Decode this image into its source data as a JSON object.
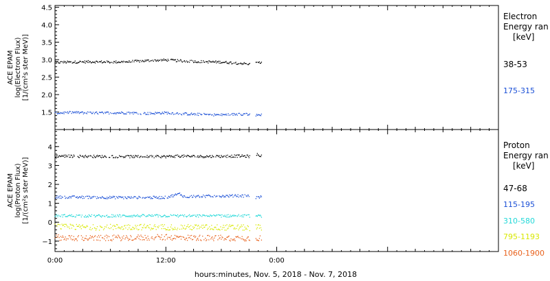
{
  "xlabel": "hours:minutes, Nov.  5, 2018 - Nov.  7, 2018",
  "colors": {
    "black": "#000000",
    "blue": "#1a4fd6",
    "cyan": "#22d8d8",
    "yellow": "#d8e800",
    "orange": "#e8601a"
  },
  "chart_data": [
    {
      "type": "scatter",
      "panel": "electron",
      "ylabel_lines": [
        "ACE EPAM",
        "log(Electron Flux)",
        "[1/(cm²s ster MeV)]"
      ],
      "legend_title": [
        "Electron",
        "Energy ran",
        "[keV]"
      ],
      "xlim": [
        0,
        48
      ],
      "ylim": [
        1.0,
        4.55
      ],
      "x_ticks": [
        {
          "x": 0,
          "label": "0:00"
        },
        {
          "x": 12,
          "label": "12:00"
        },
        {
          "x": 24,
          "label": "0:00"
        }
      ],
      "y_ticks": [
        1.5,
        2.0,
        2.5,
        3.0,
        3.5,
        4.0,
        4.5
      ],
      "y_tick_labels": [
        "1.5",
        "2.0",
        "2.5",
        "3.0",
        "3.5",
        "4.0",
        "4.5"
      ],
      "gap": [
        21.1,
        21.7
      ],
      "series": [
        {
          "name": "38-53",
          "color": "#000000",
          "x": [
            0,
            2,
            4,
            6,
            8,
            10,
            12,
            14,
            16,
            18,
            20,
            21.1,
            21.7,
            22.4
          ],
          "y": [
            2.92,
            2.93,
            2.94,
            2.93,
            2.94,
            2.97,
            2.99,
            2.96,
            2.94,
            2.93,
            2.9,
            2.87,
            2.9,
            2.92
          ]
        },
        {
          "name": "175-315",
          "color": "#1a4fd6",
          "x": [
            0,
            2,
            4,
            6,
            8,
            10,
            12,
            14,
            16,
            18,
            20,
            21.1,
            21.7,
            22.4
          ],
          "y": [
            1.47,
            1.49,
            1.47,
            1.48,
            1.48,
            1.46,
            1.48,
            1.45,
            1.43,
            1.42,
            1.44,
            1.44,
            1.4,
            1.43
          ]
        }
      ]
    },
    {
      "type": "scatter",
      "panel": "proton",
      "ylabel_lines": [
        "ACE EPAM",
        "log(Proton Flux)",
        "[1/(cm²s ster MeV)]"
      ],
      "legend_title": [
        "Proton",
        "Energy ran",
        "[keV]"
      ],
      "xlim": [
        0,
        48
      ],
      "ylim": [
        -1.55,
        4.9
      ],
      "x_ticks": [
        {
          "x": 0,
          "label": "0:00"
        },
        {
          "x": 12,
          "label": "12:00"
        },
        {
          "x": 24,
          "label": "0:00"
        }
      ],
      "y_ticks": [
        -1,
        0,
        1,
        2,
        3,
        4
      ],
      "y_tick_labels": [
        "−1",
        "0",
        "1",
        "2",
        "3",
        "4"
      ],
      "gap": [
        21.1,
        21.7
      ],
      "series": [
        {
          "name": "47-68",
          "color": "#000000",
          "x": [
            0,
            4,
            8,
            12,
            13.5,
            14.5,
            17,
            20,
            21.1,
            21.7,
            22.4
          ],
          "y": [
            3.5,
            3.48,
            3.47,
            3.47,
            3.5,
            3.48,
            3.48,
            3.5,
            3.48,
            3.6,
            3.5
          ]
        },
        {
          "name": "115-195",
          "color": "#1a4fd6",
          "x": [
            0,
            4,
            8,
            12,
            13.5,
            14,
            15,
            18,
            20,
            21.1,
            21.7,
            22.4
          ],
          "y": [
            1.33,
            1.32,
            1.3,
            1.31,
            1.5,
            1.35,
            1.37,
            1.38,
            1.4,
            1.38,
            1.3,
            1.35
          ]
        },
        {
          "name": "310-580",
          "color": "#22d8d8",
          "x": [
            0,
            4,
            8,
            12,
            16,
            20,
            21.1,
            21.7,
            22.4
          ],
          "y": [
            0.35,
            0.33,
            0.34,
            0.34,
            0.33,
            0.34,
            0.33,
            0.32,
            0.33
          ]
        },
        {
          "name": "795-1193",
          "color": "#d8e800",
          "x": [
            0,
            4,
            8,
            12,
            16,
            20,
            21.1,
            21.7,
            22.4
          ],
          "y": [
            -0.25,
            -0.27,
            -0.25,
            -0.26,
            -0.27,
            -0.28,
            -0.3,
            -0.27,
            -0.27
          ]
        },
        {
          "name": "1060-1900",
          "color": "#e8601a",
          "x": [
            0,
            4,
            8,
            12,
            16,
            20,
            21.1,
            21.7,
            22.4
          ],
          "y": [
            -0.8,
            -0.85,
            -0.82,
            -0.8,
            -0.83,
            -0.84,
            -0.85,
            -0.82,
            -0.85
          ]
        }
      ]
    }
  ]
}
